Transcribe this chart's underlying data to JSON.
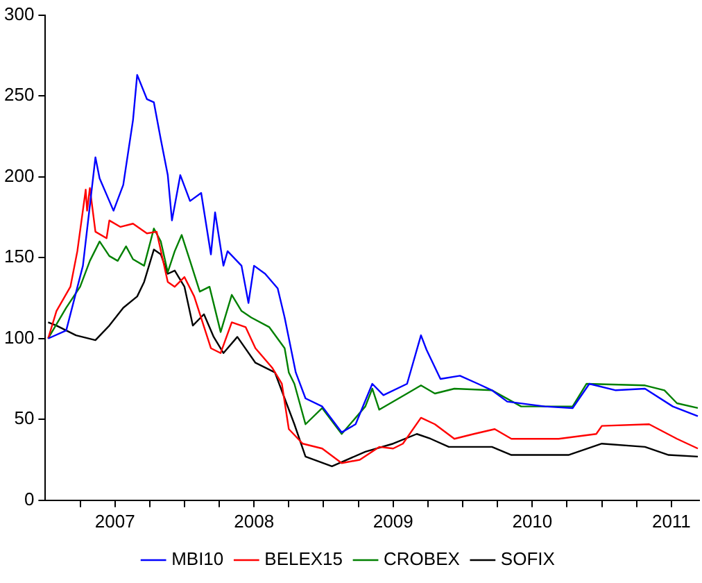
{
  "chart_data": {
    "type": "line",
    "xlim": [
      2007.0,
      2011.7
    ],
    "ylim": [
      0,
      300
    ],
    "yticks": [
      0,
      50,
      100,
      150,
      200,
      250,
      300
    ],
    "xticks": [
      {
        "value": 2007.25,
        "label": null
      },
      {
        "value": 2007.5,
        "label": "2007"
      },
      {
        "value": 2007.75,
        "label": null
      },
      {
        "value": 2008,
        "label": null
      },
      {
        "value": 2008.25,
        "label": null
      },
      {
        "value": 2008.5,
        "label": "2008"
      },
      {
        "value": 2008.75,
        "label": null
      },
      {
        "value": 2009,
        "label": null
      },
      {
        "value": 2009.25,
        "label": null
      },
      {
        "value": 2009.5,
        "label": "2009"
      },
      {
        "value": 2009.75,
        "label": null
      },
      {
        "value": 2010,
        "label": null
      },
      {
        "value": 2010.25,
        "label": null
      },
      {
        "value": 2010.5,
        "label": "2010"
      },
      {
        "value": 2010.75,
        "label": null
      },
      {
        "value": 2011,
        "label": null
      },
      {
        "value": 2011.25,
        "label": null
      },
      {
        "value": 2011.5,
        "label": "2011"
      }
    ],
    "grid": false,
    "legend": "bottom",
    "marker": "none",
    "line_style": "solid",
    "series": [
      {
        "name": "MBI10",
        "color": "#0000ff",
        "x": [
          2007.02,
          2007.15,
          2007.27,
          2007.36,
          2007.39,
          2007.46,
          2007.49,
          2007.56,
          2007.63,
          2007.66,
          2007.73,
          2007.78,
          2007.83,
          2007.88,
          2007.91,
          2007.97,
          2008.04,
          2008.12,
          2008.19,
          2008.22,
          2008.28,
          2008.31,
          2008.41,
          2008.46,
          2008.5,
          2008.58,
          2008.67,
          2008.72,
          2008.8,
          2008.87,
          2008.99,
          2009.13,
          2009.23,
          2009.35,
          2009.43,
          2009.6,
          2009.7,
          2009.74,
          2009.84,
          2009.98,
          2010.11,
          2010.21,
          2010.32,
          2010.59,
          2010.79,
          2010.91,
          2011.1,
          2011.31,
          2011.51,
          2011.69
        ],
        "values": [
          100,
          105,
          145,
          212,
          199,
          185,
          179,
          195,
          235,
          263,
          248,
          246,
          223,
          201,
          173,
          201,
          185,
          190,
          152,
          178,
          145,
          154,
          145,
          122,
          145,
          140,
          131,
          113,
          79,
          63,
          58,
          42,
          47,
          72,
          65,
          72,
          102,
          93,
          75,
          77,
          72,
          68,
          61,
          58,
          57,
          72,
          68,
          69,
          58,
          52
        ]
      },
      {
        "name": "BELEX15",
        "color": "#ff0000",
        "x": [
          2007.02,
          2007.08,
          2007.18,
          2007.23,
          2007.29,
          2007.3,
          2007.32,
          2007.36,
          2007.44,
          2007.46,
          2007.54,
          2007.63,
          2007.73,
          2007.8,
          2007.88,
          2007.93,
          2008.0,
          2008.07,
          2008.19,
          2008.26,
          2008.34,
          2008.44,
          2008.51,
          2008.63,
          2008.7,
          2008.75,
          2008.85,
          2008.99,
          2009.13,
          2009.26,
          2009.4,
          2009.5,
          2009.57,
          2009.7,
          2009.8,
          2009.94,
          2010.08,
          2010.23,
          2010.35,
          2010.69,
          2010.96,
          2011.0,
          2011.34,
          2011.54,
          2011.69
        ],
        "values": [
          100,
          117,
          132,
          154,
          192,
          179,
          193,
          166,
          162,
          173,
          169,
          171,
          165,
          166,
          135,
          132,
          138,
          126,
          94,
          91,
          110,
          107,
          94,
          82,
          72,
          44,
          35,
          32,
          23,
          25,
          33,
          32,
          35,
          51,
          47,
          38,
          41,
          44,
          38,
          38,
          41,
          46,
          47,
          38,
          32
        ]
      },
      {
        "name": "CROBEX",
        "color": "#008000",
        "x": [
          2007.02,
          2007.15,
          2007.25,
          2007.32,
          2007.39,
          2007.46,
          2007.52,
          2007.58,
          2007.63,
          2007.71,
          2007.78,
          2007.83,
          2007.88,
          2007.93,
          2007.98,
          2008.04,
          2008.11,
          2008.18,
          2008.26,
          2008.34,
          2008.41,
          2008.48,
          2008.61,
          2008.72,
          2008.75,
          2008.79,
          2008.87,
          2008.99,
          2009.13,
          2009.3,
          2009.35,
          2009.4,
          2009.6,
          2009.7,
          2009.8,
          2009.94,
          2010.21,
          2010.42,
          2010.79,
          2010.89,
          2011.31,
          2011.45,
          2011.54,
          2011.69
        ],
        "values": [
          100,
          119,
          132,
          148,
          160,
          151,
          148,
          157,
          149,
          145,
          168,
          160,
          141,
          154,
          164,
          148,
          129,
          132,
          104,
          127,
          117,
          113,
          107,
          94,
          79,
          72,
          47,
          57,
          41,
          58,
          69,
          56,
          66,
          71,
          66,
          69,
          68,
          58,
          58,
          72,
          71,
          68,
          60,
          57
        ]
      },
      {
        "name": "SOFIX",
        "color": "#000000",
        "x": [
          2007.02,
          2007.08,
          2007.22,
          2007.36,
          2007.46,
          2007.56,
          2007.66,
          2007.71,
          2007.78,
          2007.83,
          2007.88,
          2007.93,
          2008.0,
          2008.06,
          2008.14,
          2008.21,
          2008.28,
          2008.38,
          2008.51,
          2008.65,
          2008.72,
          2008.79,
          2008.87,
          2009.06,
          2009.3,
          2009.5,
          2009.67,
          2009.77,
          2009.9,
          2010.21,
          2010.35,
          2010.76,
          2011.0,
          2011.31,
          2011.48,
          2011.69
        ],
        "values": [
          110,
          108,
          102,
          99,
          108,
          119,
          126,
          135,
          155,
          152,
          140,
          142,
          132,
          108,
          115,
          101,
          91,
          101,
          85,
          79,
          63,
          47,
          27,
          21,
          30,
          35,
          41,
          38,
          33,
          33,
          28,
          28,
          35,
          33,
          28,
          27
        ]
      }
    ]
  }
}
